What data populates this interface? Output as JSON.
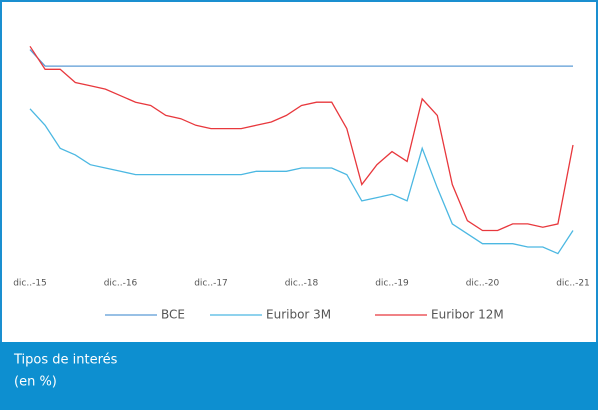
{
  "chart_data": {
    "type": "line",
    "categories": [
      "dic..-15",
      null,
      null,
      null,
      null,
      null,
      "dic..-16",
      null,
      null,
      null,
      null,
      null,
      "dic..-17",
      null,
      null,
      null,
      null,
      null,
      "dic..-18",
      null,
      null,
      null,
      null,
      null,
      "dic..-19",
      null,
      null,
      null,
      null,
      null,
      "dic..-20",
      null,
      null,
      null,
      null,
      null,
      "dic..-21"
    ],
    "series": [
      {
        "name": "BCE",
        "color": "#5b9bd5",
        "values": [
          0.05,
          0,
          0,
          0,
          0,
          0,
          0,
          0,
          0,
          0,
          0,
          0,
          0,
          0,
          0,
          0,
          0,
          0,
          0,
          0,
          0,
          0,
          0,
          0,
          0,
          0,
          0,
          0,
          0,
          0,
          0,
          0,
          0,
          0,
          0,
          0,
          0
        ]
      },
      {
        "name": "Euribor 3M",
        "color": "#4cb8e2",
        "values": [
          -0.13,
          -0.18,
          -0.25,
          -0.27,
          -0.3,
          -0.31,
          -0.32,
          -0.33,
          -0.33,
          -0.33,
          -0.33,
          -0.33,
          -0.33,
          -0.33,
          -0.33,
          -0.32,
          -0.32,
          -0.32,
          -0.31,
          -0.31,
          -0.31,
          -0.33,
          -0.41,
          -0.4,
          -0.39,
          -0.41,
          -0.25,
          -0.37,
          -0.48,
          -0.51,
          -0.54,
          -0.54,
          -0.54,
          -0.55,
          -0.55,
          -0.57,
          -0.5
        ]
      },
      {
        "name": "Euribor 12M",
        "color": "#e8383d",
        "values": [
          0.06,
          -0.01,
          -0.01,
          -0.05,
          -0.06,
          -0.07,
          -0.09,
          -0.11,
          -0.12,
          -0.15,
          -0.16,
          -0.18,
          -0.19,
          -0.19,
          -0.19,
          -0.18,
          -0.17,
          -0.15,
          -0.12,
          -0.11,
          -0.11,
          -0.19,
          -0.36,
          -0.3,
          -0.26,
          -0.29,
          -0.1,
          -0.15,
          -0.36,
          -0.47,
          -0.5,
          -0.5,
          -0.48,
          -0.48,
          -0.49,
          -0.48,
          -0.24
        ]
      }
    ],
    "ylim": [
      -0.62,
      0.14
    ],
    "title": "Tipos de interés",
    "subtitle": "(en %)"
  }
}
